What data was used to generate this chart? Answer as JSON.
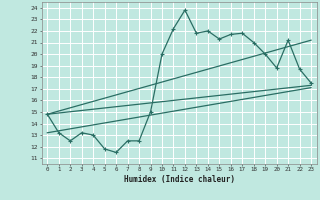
{
  "xlabel": "Humidex (Indice chaleur)",
  "bg_color": "#c0e8e0",
  "grid_color": "#ffffff",
  "line_color": "#2a6e64",
  "xlim": [
    -0.5,
    23.5
  ],
  "ylim": [
    10.5,
    24.5
  ],
  "xticks": [
    0,
    1,
    2,
    3,
    4,
    5,
    6,
    7,
    8,
    9,
    10,
    11,
    12,
    13,
    14,
    15,
    16,
    17,
    18,
    19,
    20,
    21,
    22,
    23
  ],
  "yticks": [
    11,
    12,
    13,
    14,
    15,
    16,
    17,
    18,
    19,
    20,
    21,
    22,
    23,
    24
  ],
  "line1_x": [
    0,
    1,
    2,
    3,
    4,
    5,
    6,
    7,
    8,
    9,
    10,
    11,
    12,
    13,
    14,
    15,
    16,
    17,
    18,
    19,
    20,
    21,
    22,
    23
  ],
  "line1_y": [
    14.8,
    13.2,
    12.5,
    13.2,
    13.0,
    11.8,
    11.5,
    12.5,
    12.5,
    15.0,
    20.0,
    22.2,
    23.8,
    21.8,
    22.0,
    21.3,
    21.7,
    21.8,
    21.0,
    20.0,
    18.8,
    21.2,
    18.7,
    17.5
  ],
  "line2_x": [
    0,
    23
  ],
  "line2_y": [
    14.8,
    17.3
  ],
  "line3_x": [
    0,
    23
  ],
  "line3_y": [
    14.8,
    21.2
  ],
  "line4_x": [
    0,
    23
  ],
  "line4_y": [
    13.2,
    17.1
  ]
}
